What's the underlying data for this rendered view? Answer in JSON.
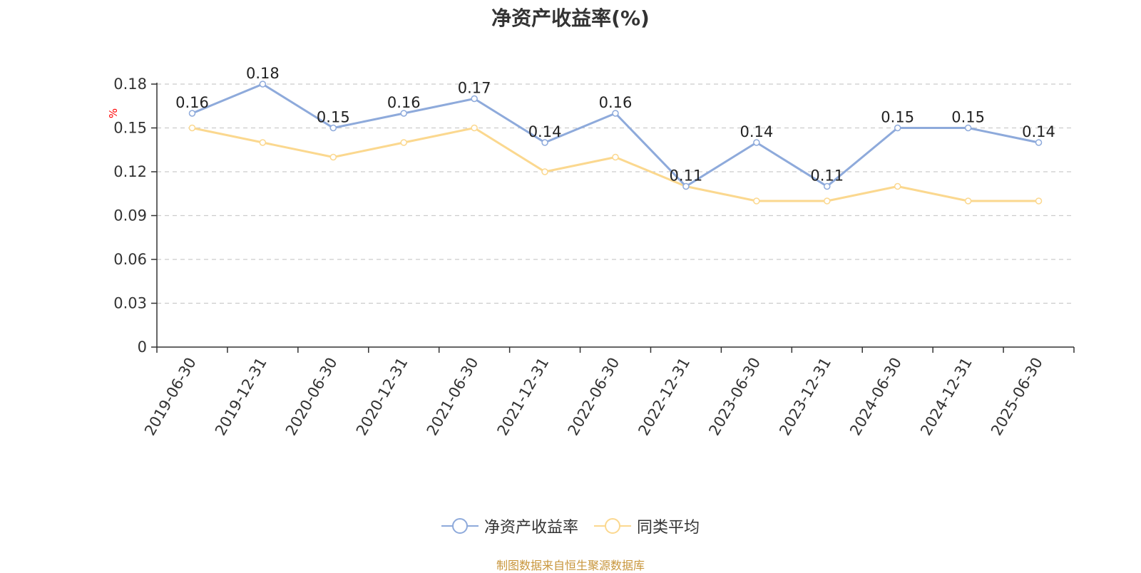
{
  "chart_data": {
    "type": "line",
    "title": "净资产收益率(%)",
    "ylabel": "%",
    "ylim": [
      0,
      0.18
    ],
    "yticks": [
      "0",
      "0.03",
      "0.06",
      "0.09",
      "0.12",
      "0.15",
      "0.18"
    ],
    "grid": true,
    "legend_position": "bottom",
    "categories": [
      "2019-06-30",
      "2019-12-31",
      "2020-06-30",
      "2020-12-31",
      "2021-06-30",
      "2021-12-31",
      "2022-06-30",
      "2022-12-31",
      "2023-06-30",
      "2023-12-31",
      "2024-06-30",
      "2024-12-31",
      "2025-06-30"
    ],
    "series": [
      {
        "name": "净资产收益率",
        "color": "#8eaadb",
        "values": [
          0.16,
          0.18,
          0.15,
          0.16,
          0.17,
          0.14,
          0.16,
          0.11,
          0.14,
          0.11,
          0.15,
          0.15,
          0.14
        ],
        "show_labels": true
      },
      {
        "name": "同类平均",
        "color": "#fbd88f",
        "values": [
          0.15,
          0.14,
          0.13,
          0.14,
          0.15,
          0.12,
          0.13,
          0.11,
          0.1,
          0.1,
          0.11,
          0.1,
          0.1
        ],
        "show_labels": false
      }
    ]
  },
  "source": {
    "text": "制图数据来自恒生聚源数据库",
    "color": "#c8963c"
  },
  "colors": {
    "axis": "#333333",
    "grid": "#cccccc",
    "ylabel": "#ff0000"
  }
}
